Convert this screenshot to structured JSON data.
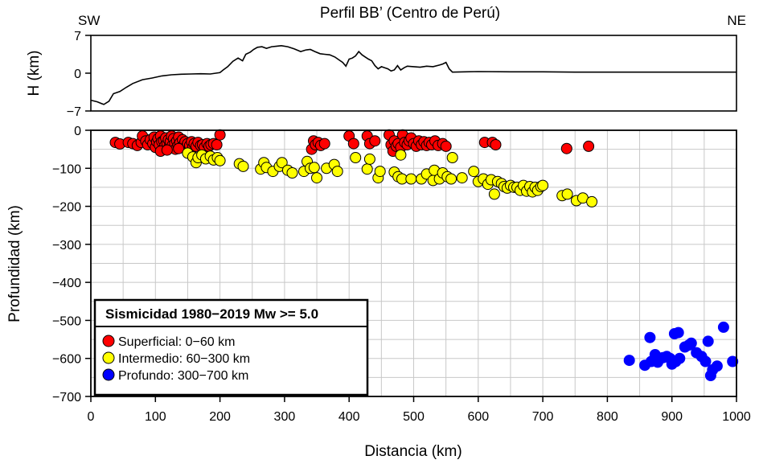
{
  "chart_data": [
    {
      "type": "line",
      "title": "Perfil BB’ (Centro de Perú)",
      "left_label": "SW",
      "right_label": "NE",
      "ylabel": "H (km)",
      "xlim": [
        0,
        1000
      ],
      "ylim": [
        -7,
        7
      ],
      "yticks": [
        7,
        0,
        -7
      ],
      "ytick_labels": [
        "7",
        "0",
        "−7"
      ],
      "series": [
        {
          "x": [
            0,
            10,
            20,
            28,
            35,
            45,
            55,
            65,
            80,
            95,
            110,
            125,
            140,
            155,
            170,
            185,
            200,
            205,
            212,
            220,
            228,
            235,
            240,
            247,
            252,
            258,
            265,
            272,
            280,
            288,
            295,
            305,
            315,
            325,
            333,
            340,
            347,
            355,
            362,
            370,
            378,
            385,
            390,
            395,
            400,
            405,
            410,
            415,
            420,
            425,
            430,
            435,
            440,
            445,
            450,
            455,
            460,
            465,
            470,
            475,
            480,
            485,
            490,
            500,
            510,
            520,
            530,
            540,
            545,
            550,
            555,
            560,
            580,
            600,
            650,
            700,
            750,
            800,
            850,
            900,
            950,
            1000
          ],
          "y": [
            -5.0,
            -5.3,
            -5.8,
            -5.2,
            -3.8,
            -3.4,
            -2.6,
            -1.9,
            -1.2,
            -0.9,
            -0.5,
            -0.3,
            -0.2,
            -0.15,
            -0.1,
            -0.15,
            0.1,
            0.6,
            1.2,
            2.2,
            2.8,
            2.3,
            3.5,
            3.9,
            4.4,
            4.8,
            4.9,
            4.6,
            4.9,
            5.0,
            5.1,
            4.9,
            4.5,
            4.0,
            4.3,
            4.4,
            4.0,
            3.6,
            3.5,
            3.4,
            3.0,
            2.4,
            2.0,
            1.3,
            2.6,
            2.8,
            3.2,
            4.0,
            3.4,
            3.0,
            2.6,
            2.3,
            1.4,
            0.8,
            1.2,
            1.0,
            0.8,
            0.4,
            0.6,
            1.4,
            0.6,
            1.0,
            1.3,
            1.2,
            1.1,
            1.3,
            1.2,
            1.5,
            1.7,
            2.0,
            0.8,
            0.2,
            0.25,
            0.3,
            0.25,
            0.25,
            0.2,
            0.2,
            0.2,
            0.2,
            0.2,
            0.2
          ]
        }
      ]
    },
    {
      "type": "scatter",
      "xlabel": "Distancia (km)",
      "ylabel": "Profundidad (km)",
      "xlim": [
        0,
        1000
      ],
      "ylim": [
        -700,
        0
      ],
      "xticks": [
        0,
        100,
        200,
        300,
        400,
        500,
        600,
        700,
        800,
        900,
        1000
      ],
      "xtick_labels": [
        "0",
        "100",
        "200",
        "300",
        "400",
        "500",
        "600",
        "700",
        "800",
        "900",
        "1000"
      ],
      "yticks": [
        0,
        -100,
        -200,
        -300,
        -400,
        -500,
        -600,
        -700
      ],
      "ytick_labels": [
        "0",
        "−100",
        "−200",
        "−300",
        "−400",
        "−500",
        "−600",
        "−700"
      ],
      "grid": true,
      "legend": {
        "title": "Sismicidad 1980−2019 Mw >= 5.0",
        "placement": "bottom-left",
        "entries": [
          "Superficial: 0−60 km",
          "Intermedio: 60−300 km",
          "Profundo: 300−700 km"
        ]
      },
      "series": [
        {
          "name": "Superficial: 0−60 km",
          "color": "#ff0000",
          "points": [
            [
              38,
              -32
            ],
            [
              45,
              -36
            ],
            [
              58,
              -32
            ],
            [
              65,
              -35
            ],
            [
              72,
              -40
            ],
            [
              78,
              -32
            ],
            [
              80,
              -15
            ],
            [
              85,
              -28
            ],
            [
              88,
              -38
            ],
            [
              92,
              -25
            ],
            [
              96,
              -35
            ],
            [
              98,
              -18
            ],
            [
              100,
              -45
            ],
            [
              102,
              -30
            ],
            [
              104,
              -22
            ],
            [
              106,
              -38
            ],
            [
              108,
              -15
            ],
            [
              110,
              -30
            ],
            [
              112,
              -50
            ],
            [
              113,
              -28
            ],
            [
              115,
              -40
            ],
            [
              116,
              -20
            ],
            [
              118,
              -35
            ],
            [
              120,
              -25
            ],
            [
              121,
              -45
            ],
            [
              123,
              -30
            ],
            [
              125,
              -15
            ],
            [
              126,
              -40
            ],
            [
              128,
              -22
            ],
            [
              130,
              -35
            ],
            [
              131,
              -50
            ],
            [
              133,
              -28
            ],
            [
              135,
              -40
            ],
            [
              136,
              -18
            ],
            [
              138,
              -33
            ],
            [
              140,
              -45
            ],
            [
              142,
              -25
            ],
            [
              144,
              -38
            ],
            [
              146,
              -30
            ],
            [
              148,
              -42
            ],
            [
              150,
              -35
            ],
            [
              153,
              -40
            ],
            [
              156,
              -30
            ],
            [
              158,
              -45
            ],
            [
              160,
              -35
            ],
            [
              163,
              -42
            ],
            [
              166,
              -32
            ],
            [
              170,
              -40
            ],
            [
              173,
              -38
            ],
            [
              176,
              -45
            ],
            [
              180,
              -35
            ],
            [
              183,
              -42
            ],
            [
              186,
              -38
            ],
            [
              190,
              -35
            ],
            [
              195,
              -38
            ],
            [
              200,
              -12
            ],
            [
              108,
              -55
            ],
            [
              118,
              -52
            ],
            [
              136,
              -48
            ],
            [
              342,
              -50
            ],
            [
              345,
              -28
            ],
            [
              348,
              -38
            ],
            [
              352,
              -32
            ],
            [
              356,
              -40
            ],
            [
              362,
              -35
            ],
            [
              400,
              -15
            ],
            [
              407,
              -35
            ],
            [
              428,
              -15
            ],
            [
              432,
              -35
            ],
            [
              440,
              -28
            ],
            [
              462,
              -12
            ],
            [
              465,
              -38
            ],
            [
              468,
              -55
            ],
            [
              470,
              -28
            ],
            [
              473,
              -42
            ],
            [
              476,
              -35
            ],
            [
              480,
              -45
            ],
            [
              483,
              -12
            ],
            [
              486,
              -32
            ],
            [
              490,
              -38
            ],
            [
              493,
              -28
            ],
            [
              496,
              -20
            ],
            [
              500,
              -35
            ],
            [
              504,
              -42
            ],
            [
              508,
              -28
            ],
            [
              512,
              -38
            ],
            [
              516,
              -30
            ],
            [
              520,
              -40
            ],
            [
              524,
              -32
            ],
            [
              528,
              -38
            ],
            [
              533,
              -28
            ],
            [
              538,
              -40
            ],
            [
              545,
              -35
            ],
            [
              550,
              -42
            ],
            [
              610,
              -32
            ],
            [
              622,
              -32
            ],
            [
              627,
              -38
            ],
            [
              737,
              -48
            ],
            [
              771,
              -42
            ]
          ]
        },
        {
          "name": "Intermedio: 60−300 km",
          "color": "#ffff00",
          "points": [
            [
              150,
              -60
            ],
            [
              158,
              -70
            ],
            [
              163,
              -85
            ],
            [
              166,
              -72
            ],
            [
              172,
              -65
            ],
            [
              178,
              -75
            ],
            [
              185,
              -68
            ],
            [
              190,
              -78
            ],
            [
              196,
              -72
            ],
            [
              200,
              -80
            ],
            [
              230,
              -88
            ],
            [
              236,
              -95
            ],
            [
              263,
              -102
            ],
            [
              268,
              -85
            ],
            [
              272,
              -98
            ],
            [
              282,
              -108
            ],
            [
              292,
              -95
            ],
            [
              296,
              -85
            ],
            [
              305,
              -105
            ],
            [
              312,
              -112
            ],
            [
              330,
              -108
            ],
            [
              335,
              -82
            ],
            [
              340,
              -100
            ],
            [
              346,
              -98
            ],
            [
              350,
              -125
            ],
            [
              365,
              -100
            ],
            [
              377,
              -90
            ],
            [
              382,
              -108
            ],
            [
              410,
              -72
            ],
            [
              428,
              -102
            ],
            [
              432,
              -76
            ],
            [
              445,
              -125
            ],
            [
              448,
              -108
            ],
            [
              470,
              -110
            ],
            [
              476,
              -122
            ],
            [
              480,
              -65
            ],
            [
              482,
              -128
            ],
            [
              496,
              -128
            ],
            [
              512,
              -128
            ],
            [
              520,
              -115
            ],
            [
              530,
              -132
            ],
            [
              532,
              -105
            ],
            [
              540,
              -128
            ],
            [
              545,
              -112
            ],
            [
              552,
              -122
            ],
            [
              558,
              -128
            ],
            [
              560,
              -72
            ],
            [
              575,
              -125
            ],
            [
              593,
              -108
            ],
            [
              600,
              -135
            ],
            [
              608,
              -128
            ],
            [
              615,
              -142
            ],
            [
              620,
              -130
            ],
            [
              625,
              -168
            ],
            [
              630,
              -135
            ],
            [
              636,
              -140
            ],
            [
              640,
              -148
            ],
            [
              645,
              -152
            ],
            [
              650,
              -145
            ],
            [
              655,
              -150
            ],
            [
              660,
              -150
            ],
            [
              665,
              -158
            ],
            [
              670,
              -145
            ],
            [
              675,
              -160
            ],
            [
              680,
              -148
            ],
            [
              684,
              -162
            ],
            [
              688,
              -150
            ],
            [
              692,
              -158
            ],
            [
              697,
              -148
            ],
            [
              700,
              -145
            ],
            [
              730,
              -172
            ],
            [
              738,
              -168
            ],
            [
              752,
              -185
            ],
            [
              762,
              -178
            ],
            [
              776,
              -188
            ]
          ]
        },
        {
          "name": "Profundo: 300−700 km",
          "color": "#0000ff",
          "points": [
            [
              834,
              -605
            ],
            [
              858,
              -618
            ],
            [
              866,
              -545
            ],
            [
              868,
              -608
            ],
            [
              874,
              -590
            ],
            [
              878,
              -610
            ],
            [
              886,
              -598
            ],
            [
              892,
              -595
            ],
            [
              897,
              -600
            ],
            [
              900,
              -615
            ],
            [
              904,
              -535
            ],
            [
              906,
              -608
            ],
            [
              910,
              -532
            ],
            [
              912,
              -600
            ],
            [
              920,
              -570
            ],
            [
              926,
              -565
            ],
            [
              930,
              -560
            ],
            [
              938,
              -585
            ],
            [
              946,
              -595
            ],
            [
              952,
              -608
            ],
            [
              956,
              -555
            ],
            [
              960,
              -645
            ],
            [
              963,
              -630
            ],
            [
              970,
              -620
            ],
            [
              980,
              -518
            ],
            [
              994,
              -608
            ]
          ]
        }
      ]
    }
  ]
}
